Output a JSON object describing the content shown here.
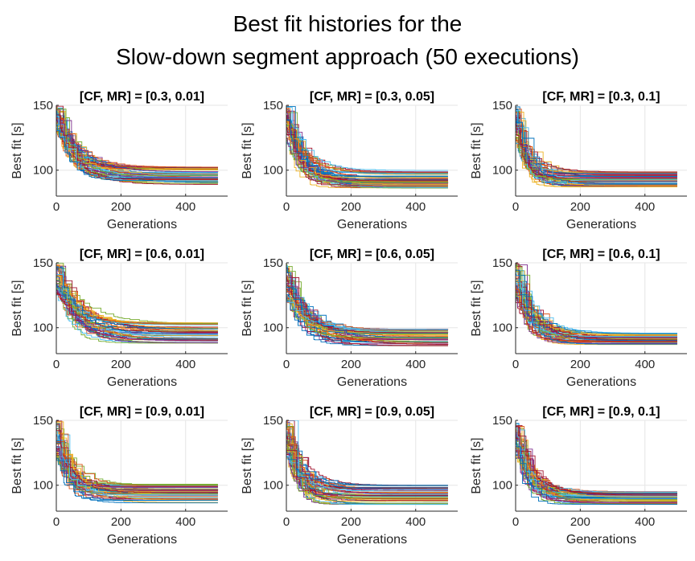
{
  "figure": {
    "title_line1": "Best fit histories for the",
    "title_line2": "Slow-down segment approach (50 executions)"
  },
  "colors": {
    "series_palette": [
      "#0072BD",
      "#D95319",
      "#EDB120",
      "#7E2F8E",
      "#77AC30",
      "#4DBEEE",
      "#A2142F"
    ],
    "grid": "#e6e6e6",
    "axes": "#262626"
  },
  "chart_data": [
    {
      "type": "line",
      "title": "[CF, MR] = [0.3, 0.01]",
      "xlabel": "Generations",
      "ylabel": "Best fit [s]",
      "xlim": [
        0,
        530
      ],
      "ylim": [
        80,
        150
      ],
      "xticks": [
        0,
        200,
        400
      ],
      "yticks": [
        100,
        150
      ],
      "grid": true,
      "n_series": 50,
      "generations": 500,
      "start_range": [
        130,
        150
      ],
      "final_range": [
        89,
        103
      ],
      "time_constant": 55
    },
    {
      "type": "line",
      "title": "[CF, MR] = [0.3, 0.05]",
      "xlabel": "Generations",
      "ylabel": "Best fit [s]",
      "xlim": [
        0,
        530
      ],
      "ylim": [
        80,
        150
      ],
      "xticks": [
        0,
        200,
        400
      ],
      "yticks": [
        100,
        150
      ],
      "grid": true,
      "n_series": 50,
      "generations": 500,
      "start_range": [
        120,
        150
      ],
      "final_range": [
        86,
        100
      ],
      "time_constant": 45
    },
    {
      "type": "line",
      "title": "[CF, MR] = [0.3, 0.1]",
      "xlabel": "Generations",
      "ylabel": "Best fit [s]",
      "xlim": [
        0,
        530
      ],
      "ylim": [
        80,
        150
      ],
      "xticks": [
        0,
        200,
        400
      ],
      "yticks": [
        100,
        150
      ],
      "grid": true,
      "n_series": 50,
      "generations": 500,
      "start_range": [
        120,
        150
      ],
      "final_range": [
        87,
        99
      ],
      "time_constant": 35
    },
    {
      "type": "line",
      "title": "[CF, MR] = [0.6, 0.01]",
      "xlabel": "Generations",
      "ylabel": "Best fit [s]",
      "xlim": [
        0,
        530
      ],
      "ylim": [
        80,
        150
      ],
      "xticks": [
        0,
        200,
        400
      ],
      "yticks": [
        100,
        150
      ],
      "grid": true,
      "n_series": 50,
      "generations": 500,
      "start_range": [
        125,
        150
      ],
      "final_range": [
        88,
        104
      ],
      "time_constant": 60
    },
    {
      "type": "line",
      "title": "[CF, MR] = [0.6, 0.05]",
      "xlabel": "Generations",
      "ylabel": "Best fit [s]",
      "xlim": [
        0,
        530
      ],
      "ylim": [
        80,
        150
      ],
      "xticks": [
        0,
        200,
        400
      ],
      "yticks": [
        100,
        150
      ],
      "grid": true,
      "n_series": 50,
      "generations": 500,
      "start_range": [
        120,
        150
      ],
      "final_range": [
        86,
        99
      ],
      "time_constant": 55
    },
    {
      "type": "line",
      "title": "[CF, MR] = [0.6, 0.1]",
      "xlabel": "Generations",
      "ylabel": "Best fit [s]",
      "xlim": [
        0,
        530
      ],
      "ylim": [
        80,
        150
      ],
      "xticks": [
        0,
        200,
        400
      ],
      "yticks": [
        100,
        150
      ],
      "grid": true,
      "n_series": 50,
      "generations": 500,
      "start_range": [
        120,
        150
      ],
      "final_range": [
        87,
        96
      ],
      "time_constant": 45
    },
    {
      "type": "line",
      "title": "[CF, MR] = [0.9, 0.01]",
      "xlabel": "Generations",
      "ylabel": "Best fit [s]",
      "xlim": [
        0,
        530
      ],
      "ylim": [
        80,
        150
      ],
      "xticks": [
        0,
        200,
        400
      ],
      "yticks": [
        100,
        150
      ],
      "grid": true,
      "n_series": 50,
      "generations": 500,
      "start_range": [
        120,
        150
      ],
      "final_range": [
        86,
        101
      ],
      "time_constant": 40
    },
    {
      "type": "line",
      "title": "[CF, MR] = [0.9, 0.05]",
      "xlabel": "Generations",
      "ylabel": "Best fit [s]",
      "xlim": [
        0,
        530
      ],
      "ylim": [
        80,
        150
      ],
      "xticks": [
        0,
        200,
        400
      ],
      "yticks": [
        100,
        150
      ],
      "grid": true,
      "n_series": 50,
      "generations": 500,
      "start_range": [
        120,
        150
      ],
      "final_range": [
        85,
        100
      ],
      "time_constant": 40
    },
    {
      "type": "line",
      "title": "[CF, MR] = [0.9, 0.1]",
      "xlabel": "Generations",
      "ylabel": "Best fit [s]",
      "xlim": [
        0,
        530
      ],
      "ylim": [
        80,
        150
      ],
      "xticks": [
        0,
        200,
        400
      ],
      "yticks": [
        100,
        150
      ],
      "grid": true,
      "n_series": 50,
      "generations": 500,
      "start_range": [
        120,
        150
      ],
      "final_range": [
        85,
        95
      ],
      "time_constant": 40
    }
  ]
}
